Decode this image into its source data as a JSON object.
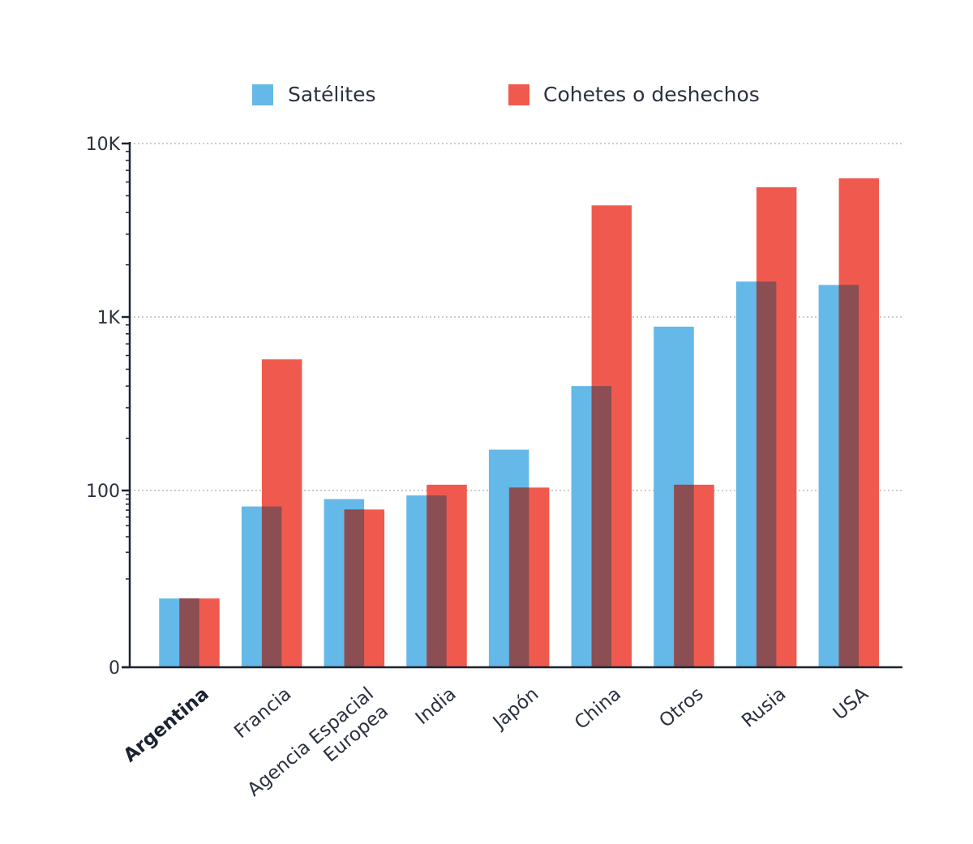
{
  "chart_data": {
    "type": "bar",
    "yscale": "log",
    "ylim": [
      0,
      10000
    ],
    "yticks": [
      {
        "value": 0,
        "label": "0"
      },
      {
        "value": 100,
        "label": "100"
      },
      {
        "value": 1000,
        "label": "1K"
      },
      {
        "value": 10000,
        "label": "10K"
      }
    ],
    "grid": true,
    "legend_position": "top",
    "categories": [
      {
        "lines": [
          "Argentina"
        ],
        "bold": true
      },
      {
        "lines": [
          "Francia"
        ],
        "bold": false
      },
      {
        "lines": [
          "Agencia Espacial",
          "Europea"
        ],
        "bold": false
      },
      {
        "lines": [
          "India"
        ],
        "bold": false
      },
      {
        "lines": [
          "Japón"
        ],
        "bold": false
      },
      {
        "lines": [
          "China"
        ],
        "bold": false
      },
      {
        "lines": [
          "Otros"
        ],
        "bold": false
      },
      {
        "lines": [
          "Rusia"
        ],
        "bold": false
      },
      {
        "lines": [
          "USA"
        ],
        "bold": false
      }
    ],
    "series": [
      {
        "name": "Satélites",
        "color": "#65b9e8",
        "values": [
          6,
          66,
          80,
          88,
          172,
          400,
          880,
          1600,
          1530
        ]
      },
      {
        "name": "Cohetes o deshechos",
        "color": "#f05a4e",
        "values": [
          6,
          570,
          61,
          108,
          104,
          4400,
          108,
          5600,
          6300
        ]
      }
    ],
    "overlap_color": "#8b4e52"
  }
}
